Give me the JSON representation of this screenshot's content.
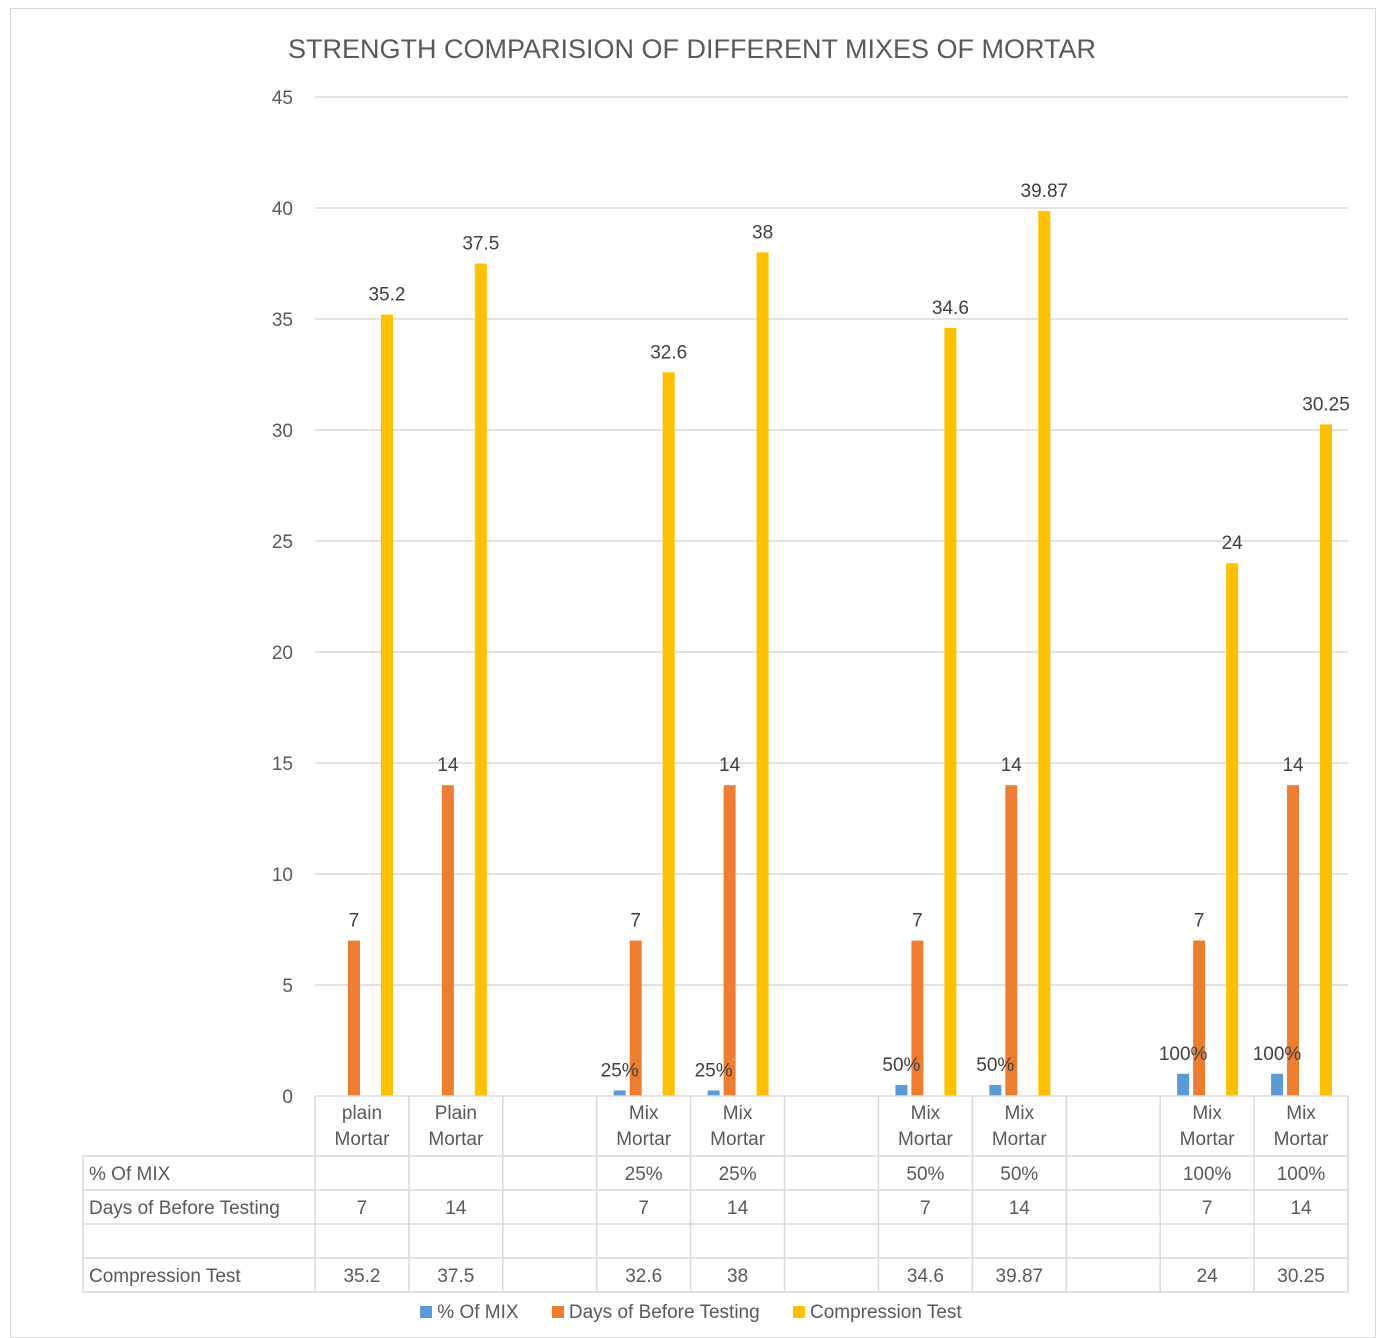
{
  "chart_data": {
    "type": "bar",
    "title": "STRENGTH COMPARISION OF DIFFERENT MIXES OF MORTAR",
    "ylim": [
      0,
      45
    ],
    "yticks": [
      0,
      5,
      10,
      15,
      20,
      25,
      30,
      35,
      40,
      45
    ],
    "grid": true,
    "legend_position": "bottom",
    "categories": [
      [
        "plain",
        "Mortar"
      ],
      [
        "Plain",
        "Mortar"
      ],
      [
        "",
        ""
      ],
      [
        "Mix",
        "Mortar"
      ],
      [
        "Mix",
        "Mortar"
      ],
      [
        "",
        ""
      ],
      [
        "Mix",
        "Mortar"
      ],
      [
        "Mix",
        "Mortar"
      ],
      [
        "",
        ""
      ],
      [
        "Mix",
        "Mortar"
      ],
      [
        "Mix",
        "Mortar"
      ]
    ],
    "series": [
      {
        "name": "% Of MIX",
        "color": "#5b9bd5",
        "values": [
          null,
          null,
          null,
          0.25,
          0.25,
          null,
          0.5,
          0.5,
          null,
          1,
          1
        ],
        "labels": [
          "",
          "",
          "",
          "25%",
          "25%",
          "",
          "50%",
          "50%",
          "",
          "100%",
          "100%"
        ]
      },
      {
        "name": "Days of Before Testing",
        "color": "#ed7d31",
        "values": [
          7,
          14,
          null,
          7,
          14,
          null,
          7,
          14,
          null,
          7,
          14
        ],
        "labels": [
          "7",
          "14",
          "",
          "7",
          "14",
          "",
          "7",
          "14",
          "",
          "7",
          "14"
        ]
      },
      {
        "name": "Compression Test",
        "color": "#ffc000",
        "values": [
          35.2,
          37.5,
          null,
          32.6,
          38,
          null,
          34.6,
          39.87,
          null,
          24,
          30.25
        ],
        "labels": [
          "35.2",
          "37.5",
          "",
          "32.6",
          "38",
          "",
          "34.6",
          "39.87",
          "",
          "24",
          "30.25"
        ]
      }
    ],
    "data_table": {
      "rows": [
        {
          "label": "% Of MIX",
          "cells": [
            "",
            "",
            "",
            "25%",
            "25%",
            "",
            "50%",
            "50%",
            "",
            "100%",
            "100%"
          ]
        },
        {
          "label": "Days of Before Testing",
          "cells": [
            "7",
            "14",
            "",
            "7",
            "14",
            "",
            "7",
            "14",
            "",
            "7",
            "14"
          ]
        },
        {
          "label": "",
          "cells": [
            "",
            "",
            "",
            "",
            "",
            "",
            "",
            "",
            "",
            "",
            ""
          ]
        },
        {
          "label": "Compression Test",
          "cells": [
            "35.2",
            "37.5",
            "",
            "32.6",
            "38",
            "",
            "34.6",
            "39.87",
            "",
            "24",
            "30.25"
          ]
        }
      ]
    }
  }
}
